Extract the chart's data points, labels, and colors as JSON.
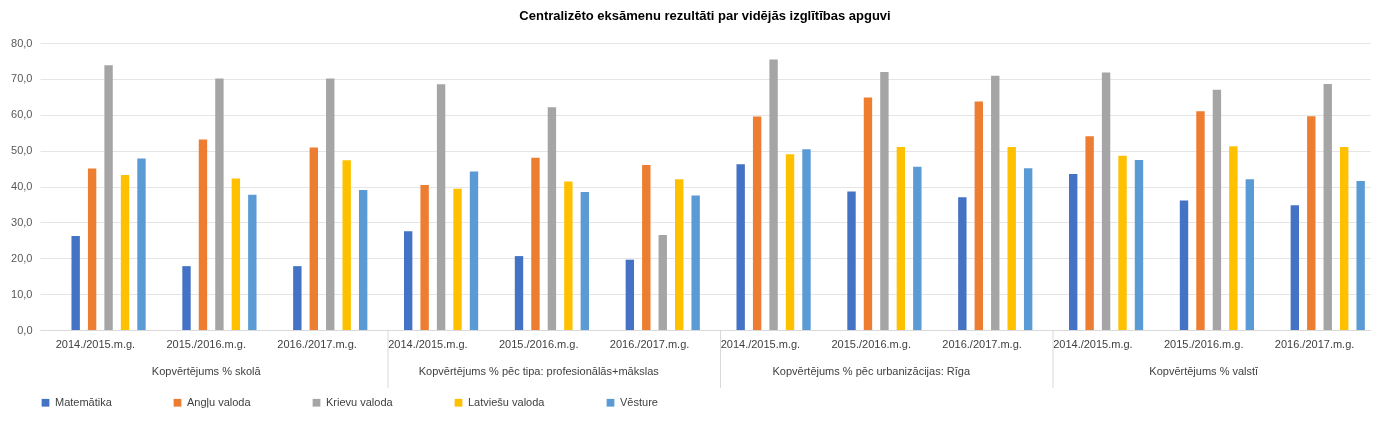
{
  "chart_data": {
    "type": "bar",
    "title": "Centralizēto eksāmenu rezultāti par vidējās izglītības apguvi",
    "categories": [
      "2014./2015.m.g.",
      "2015./2016.m.g.",
      "2016./2017.m.g.",
      "2014./2015.m.g.",
      "2015./2016.m.g.",
      "2016./2017.m.g.",
      "2014./2015.m.g.",
      "2015./2016.m.g.",
      "2016./2017.m.g.",
      "2014./2015.m.g.",
      "2015./2016.m.g.",
      "2016./2017.m.g."
    ],
    "annotations": [
      "Kopvērtējums % skolā",
      "Kopvērtējums % pēc tipa: profesionālās+mākslas",
      "Kopvērtējums % pēc urbanizācijas: Rīga",
      "Kopvērtējums % valstī"
    ],
    "series": [
      {
        "name": "Matemātika",
        "color": "#4472c4",
        "values": [
          26.2,
          17.8,
          17.8,
          27.5,
          20.6,
          19.6,
          46.2,
          38.6,
          37.0,
          43.5,
          36.1,
          34.8
        ]
      },
      {
        "name": "Angļu valoda",
        "color": "#ed7d31",
        "values": [
          45.0,
          53.1,
          50.9,
          40.4,
          48.0,
          46.0,
          59.5,
          64.8,
          63.7,
          54.0,
          61.0,
          59.6
        ]
      },
      {
        "name": "Krievu valoda",
        "color": "#a5a5a5",
        "values": [
          73.8,
          70.1,
          70.1,
          68.5,
          62.1,
          26.5,
          75.4,
          71.9,
          70.9,
          71.8,
          67.0,
          68.6
        ]
      },
      {
        "name": "Latviešu valoda",
        "color": "#ffc000",
        "values": [
          43.2,
          42.2,
          47.3,
          39.4,
          41.4,
          42.0,
          49.0,
          51.0,
          51.0,
          48.6,
          51.2,
          51.0
        ]
      },
      {
        "name": "Vēsture",
        "color": "#5b9bd5",
        "values": [
          47.8,
          37.7,
          39.0,
          44.2,
          38.5,
          37.5,
          50.4,
          45.5,
          45.1,
          47.4,
          42.0,
          41.5
        ]
      }
    ],
    "ylim": [
      0,
      80
    ],
    "yticks": [
      {
        "value": 0,
        "label": "0,0"
      },
      {
        "value": 10,
        "label": "10,0"
      },
      {
        "value": 20,
        "label": "20,0"
      },
      {
        "value": 30,
        "label": "30,0"
      },
      {
        "value": 40,
        "label": "40,0"
      },
      {
        "value": 50,
        "label": "50,0"
      },
      {
        "value": 60,
        "label": "60,0"
      },
      {
        "value": 70,
        "label": "70,0"
      },
      {
        "value": 80,
        "label": "80,0"
      }
    ],
    "grid": "y",
    "legend": "bottom"
  }
}
